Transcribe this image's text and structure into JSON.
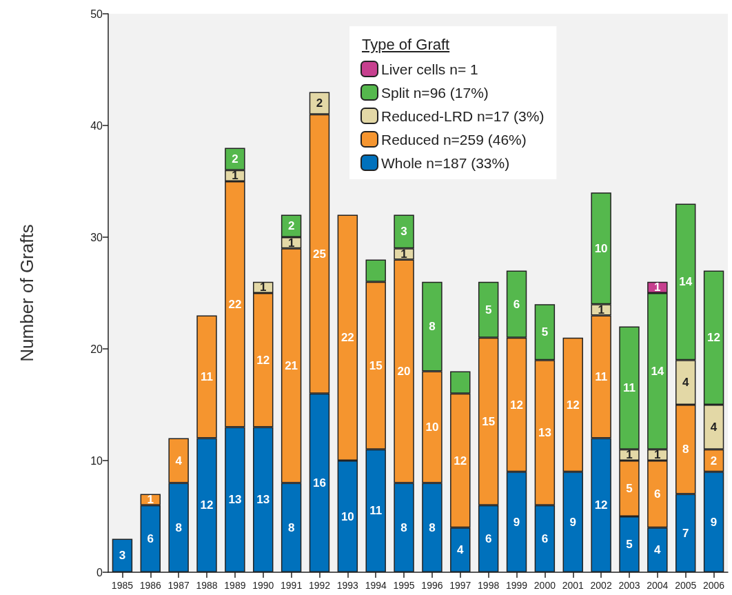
{
  "chart_data": {
    "type": "bar",
    "stacked": true,
    "ylabel": "Number of Grafts",
    "legend_title": "Type of Graft",
    "legend": "top",
    "grid": false,
    "categories": [
      "1985",
      "1986",
      "1987",
      "1988",
      "1989",
      "1990",
      "1991",
      "1992",
      "1993",
      "1994",
      "1995",
      "1996",
      "1997",
      "1998",
      "1999",
      "2000",
      "2001",
      "2002",
      "2003",
      "2004",
      "2005",
      "2006"
    ],
    "ylim": [
      0,
      50
    ],
    "yticks": [
      0,
      10,
      20,
      30,
      40,
      50
    ],
    "series": [
      {
        "name": "Whole n=187 (33%)",
        "color": "#0071bc",
        "values": [
          3,
          6,
          8,
          12,
          13,
          13,
          8,
          16,
          10,
          11,
          8,
          8,
          4,
          6,
          9,
          6,
          9,
          12,
          5,
          4,
          7,
          9
        ],
        "value_labels": [
          "3",
          "6",
          "8",
          "12",
          "13",
          "13",
          "8",
          "16",
          "10",
          "11",
          "8",
          "8",
          "4",
          "6",
          "9",
          "6",
          "9",
          "12",
          "5",
          "4",
          "7",
          "9"
        ]
      },
      {
        "name": "Reduced n=259 (46%)",
        "color": "#f5952f",
        "values": [
          null,
          1,
          4,
          11,
          22,
          12,
          21,
          25,
          22,
          15,
          20,
          10,
          12,
          15,
          12,
          13,
          12,
          11,
          5,
          6,
          8,
          2
        ],
        "value_labels": [
          null,
          "1",
          "4",
          "11",
          "22",
          "12",
          "21",
          "25",
          "22",
          "15",
          "20",
          "10",
          "12",
          "15",
          "12",
          "13",
          "12",
          "11",
          "5",
          "6",
          "8",
          "2"
        ]
      },
      {
        "name": "Reduced-LRD n=17 (3%)",
        "color": "#e3d8a6",
        "values": [
          null,
          null,
          null,
          null,
          1,
          1,
          1,
          2,
          null,
          null,
          1,
          null,
          null,
          null,
          null,
          null,
          null,
          1,
          1,
          1,
          4,
          4
        ],
        "value_labels": [
          null,
          null,
          null,
          null,
          "1",
          "1",
          "1",
          "2",
          null,
          null,
          "1",
          null,
          null,
          null,
          null,
          null,
          null,
          "1",
          "1",
          "1",
          "4",
          "4"
        ]
      },
      {
        "name": "Split n=96 (17%)",
        "color": "#55b84d",
        "values": [
          null,
          null,
          null,
          null,
          2,
          null,
          2,
          null,
          null,
          2,
          3,
          8,
          2,
          5,
          6,
          5,
          null,
          10,
          11,
          14,
          14,
          12
        ],
        "value_labels": [
          null,
          null,
          null,
          null,
          "2",
          null,
          "2",
          null,
          null,
          null,
          "3",
          "8",
          null,
          "5",
          "6",
          "5",
          null,
          "10",
          "11",
          "14",
          "14",
          "12"
        ]
      },
      {
        "name": "Liver cells n= 1",
        "color": "#c7408f",
        "values": [
          null,
          null,
          null,
          null,
          null,
          null,
          null,
          null,
          null,
          null,
          null,
          null,
          null,
          null,
          null,
          null,
          null,
          null,
          null,
          1,
          null,
          null
        ],
        "value_labels": [
          null,
          null,
          null,
          null,
          null,
          null,
          null,
          null,
          null,
          null,
          null,
          null,
          null,
          null,
          null,
          null,
          null,
          null,
          null,
          "1",
          null,
          null
        ]
      }
    ]
  }
}
